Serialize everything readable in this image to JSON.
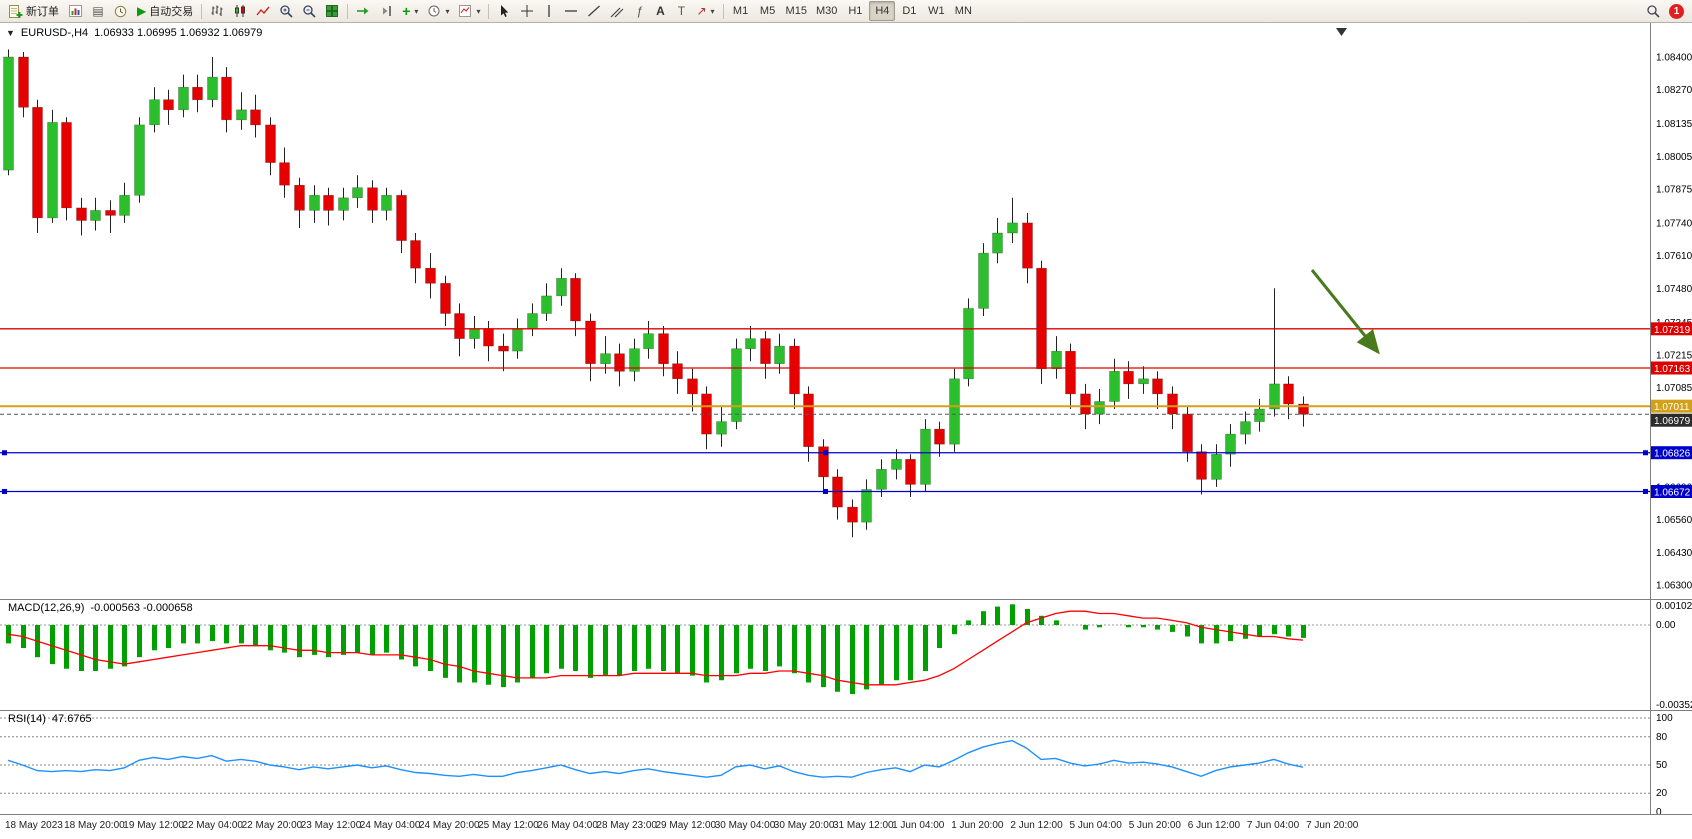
{
  "toolbar": {
    "new_order_label": "新订单",
    "auto_trading_label": "自动交易",
    "timeframe_label_group": [
      "M1",
      "M5",
      "M15",
      "M30",
      "H1",
      "H4",
      "D1",
      "W1",
      "MN"
    ],
    "active_timeframe": "H4",
    "notification_count": "1",
    "glyphs": {
      "one_click": "▼",
      "profiles": "▤",
      "auto_trading": "▶",
      "dropdown": "▾",
      "indicators_plus": "+",
      "fibonacci": "ƒ",
      "text": "A",
      "text_label": "T",
      "arrows": "↗"
    },
    "icons": [
      "new-order",
      "new-chart",
      "profiles",
      "market-watch",
      "auto-trading",
      "bar-chart",
      "candlestick-chart",
      "line-chart",
      "zoom-in",
      "zoom-out",
      "tile-windows",
      "auto-scroll",
      "chart-shift",
      "indicators",
      "periods",
      "templates",
      "cursor",
      "crosshair",
      "vertical-line",
      "horizontal-line",
      "trendline",
      "equidistant-channel",
      "fibonacci",
      "text",
      "text-label",
      "arrows",
      "search",
      "notification"
    ]
  },
  "chart": {
    "symbol": "EURUSD-,H4",
    "ohlc_line": "1.06933 1.06995 1.06932 1.06979",
    "price_axis_labels": [
      "1.08400",
      "1.08270",
      "1.08135",
      "1.08005",
      "1.07875",
      "1.07740",
      "1.07610",
      "1.07480",
      "1.07345",
      "1.07215",
      "1.07085",
      "1.06950",
      "1.06820",
      "1.06690",
      "1.06560",
      "1.06430",
      "1.06300"
    ],
    "time_axis_labels": [
      "18 May 2023",
      "18 May 20:00",
      "19 May 12:00",
      "22 May 04:00",
      "22 May 20:00",
      "23 May 12:00",
      "24 May 04:00",
      "24 May 20:00",
      "25 May 12:00",
      "26 May 04:00",
      "28 May 23:00",
      "29 May 12:00",
      "30 May 04:00",
      "30 May 20:00",
      "31 May 12:00",
      "1 Jun 04:00",
      "1 Jun 20:00",
      "2 Jun 12:00",
      "5 Jun 04:00",
      "5 Jun 20:00",
      "6 Jun 12:00",
      "7 Jun 04:00",
      "7 Jun 20:00"
    ],
    "horizontal_lines": [
      {
        "price": "1.07319",
        "value": 1.07319,
        "color": "#dd0000",
        "type": "resistance",
        "handles": false
      },
      {
        "price": "1.07163",
        "value": 1.07163,
        "color": "#dd0000",
        "type": "resistance",
        "handles": false
      },
      {
        "price": "1.07011",
        "value": 1.07011,
        "color": "#d4a017",
        "type": "pivot",
        "handles": false
      },
      {
        "price": "1.06826",
        "value": 1.06826,
        "color": "#0000cc",
        "type": "support",
        "handles": true
      },
      {
        "price": "1.06672",
        "value": 1.06672,
        "color": "#0000cc",
        "type": "support",
        "handles": true
      }
    ],
    "current_price": {
      "label": "1.06979",
      "value": 1.06979,
      "badge_color": "#2b2b2b"
    },
    "colors": {
      "bull": "#2DBE2D",
      "bear": "#E60000",
      "wick": "#222222",
      "macd_histogram": "#00A000",
      "macd_signal": "#FF0000",
      "rsi_line": "#1E90FF",
      "arrow": "#4a7a1e"
    }
  },
  "chart_data": {
    "type": "candlestick",
    "symbol": "EURUSD-",
    "timeframe": "H4",
    "price_range": [
      1.063,
      1.084
    ],
    "ohlc": [
      [
        1.0795,
        1.0843,
        1.0793,
        1.084
      ],
      [
        1.084,
        1.0842,
        1.0816,
        1.082
      ],
      [
        1.082,
        1.0823,
        1.077,
        1.0776
      ],
      [
        1.0776,
        1.0819,
        1.0774,
        1.0814
      ],
      [
        1.0814,
        1.0816,
        1.0775,
        1.078
      ],
      [
        1.078,
        1.0784,
        1.0769,
        1.0775
      ],
      [
        1.0775,
        1.0784,
        1.0771,
        1.0779
      ],
      [
        1.0779,
        1.0783,
        1.077,
        1.0777
      ],
      [
        1.0777,
        1.079,
        1.0774,
        1.0785
      ],
      [
        1.0785,
        1.0816,
        1.0782,
        1.0813
      ],
      [
        1.0813,
        1.0828,
        1.081,
        1.0823
      ],
      [
        1.0823,
        1.0827,
        1.0813,
        1.0819
      ],
      [
        1.0819,
        1.0833,
        1.0816,
        1.0828
      ],
      [
        1.0828,
        1.0833,
        1.0818,
        1.0823
      ],
      [
        1.0823,
        1.084,
        1.082,
        1.0832
      ],
      [
        1.0832,
        1.0836,
        1.081,
        1.0815
      ],
      [
        1.0815,
        1.0826,
        1.0811,
        1.0819
      ],
      [
        1.0819,
        1.0825,
        1.0808,
        1.0813
      ],
      [
        1.0813,
        1.0816,
        1.0793,
        1.0798
      ],
      [
        1.0798,
        1.0804,
        1.0784,
        1.0789
      ],
      [
        1.0789,
        1.0792,
        1.0772,
        1.0779
      ],
      [
        1.0779,
        1.0789,
        1.0774,
        1.0785
      ],
      [
        1.0785,
        1.0788,
        1.0773,
        1.0779
      ],
      [
        1.0779,
        1.0788,
        1.0775,
        1.0784
      ],
      [
        1.0784,
        1.0793,
        1.078,
        1.0788
      ],
      [
        1.0788,
        1.0791,
        1.0774,
        1.0779
      ],
      [
        1.0779,
        1.0788,
        1.0775,
        1.0785
      ],
      [
        1.0785,
        1.0787,
        1.0762,
        1.0767
      ],
      [
        1.0767,
        1.077,
        1.075,
        1.0756
      ],
      [
        1.0756,
        1.0762,
        1.0744,
        1.075
      ],
      [
        1.075,
        1.0753,
        1.0733,
        1.0738
      ],
      [
        1.0738,
        1.0742,
        1.0721,
        1.0728
      ],
      [
        1.0728,
        1.0737,
        1.0724,
        1.0732
      ],
      [
        1.0732,
        1.0735,
        1.0719,
        1.0725
      ],
      [
        1.0725,
        1.073,
        1.0715,
        1.0723
      ],
      [
        1.0723,
        1.0736,
        1.072,
        1.0732
      ],
      [
        1.0732,
        1.0742,
        1.0729,
        1.0738
      ],
      [
        1.0738,
        1.075,
        1.0735,
        1.0745
      ],
      [
        1.0745,
        1.0756,
        1.0741,
        1.0752
      ],
      [
        1.0752,
        1.0754,
        1.0729,
        1.0735
      ],
      [
        1.0735,
        1.0738,
        1.0711,
        1.0718
      ],
      [
        1.0718,
        1.0729,
        1.0714,
        1.0722
      ],
      [
        1.0722,
        1.0726,
        1.0709,
        1.0715
      ],
      [
        1.0715,
        1.0728,
        1.0711,
        1.0724
      ],
      [
        1.0724,
        1.0735,
        1.072,
        1.073
      ],
      [
        1.073,
        1.0733,
        1.0713,
        1.0718
      ],
      [
        1.0718,
        1.0723,
        1.0706,
        1.0712
      ],
      [
        1.0712,
        1.0716,
        1.0699,
        1.0706
      ],
      [
        1.0706,
        1.0709,
        1.0684,
        1.069
      ],
      [
        1.069,
        1.0701,
        1.0685,
        1.0695
      ],
      [
        1.0695,
        1.0728,
        1.0692,
        1.0724
      ],
      [
        1.0724,
        1.0733,
        1.0719,
        1.0728
      ],
      [
        1.0728,
        1.0731,
        1.0712,
        1.0718
      ],
      [
        1.0718,
        1.073,
        1.0714,
        1.0725
      ],
      [
        1.0725,
        1.0728,
        1.07,
        1.0706
      ],
      [
        1.0706,
        1.0709,
        1.0679,
        1.0685
      ],
      [
        1.0685,
        1.0688,
        1.0668,
        1.0673
      ],
      [
        1.0673,
        1.0676,
        1.0656,
        1.0661
      ],
      [
        1.0661,
        1.0664,
        1.0649,
        1.0655
      ],
      [
        1.0655,
        1.0672,
        1.0652,
        1.0668
      ],
      [
        1.0668,
        1.068,
        1.0665,
        1.0676
      ],
      [
        1.0676,
        1.0684,
        1.0672,
        1.068
      ],
      [
        1.068,
        1.0682,
        1.0665,
        1.067
      ],
      [
        1.067,
        1.0696,
        1.0667,
        1.0692
      ],
      [
        1.0692,
        1.0695,
        1.0681,
        1.0686
      ],
      [
        1.0686,
        1.0716,
        1.0683,
        1.0712
      ],
      [
        1.0712,
        1.0744,
        1.0709,
        1.074
      ],
      [
        1.074,
        1.0766,
        1.0737,
        1.0762
      ],
      [
        1.0762,
        1.0776,
        1.0758,
        1.077
      ],
      [
        1.077,
        1.0784,
        1.0766,
        1.0774
      ],
      [
        1.0774,
        1.0778,
        1.075,
        1.0756
      ],
      [
        1.0756,
        1.0759,
        1.071,
        1.0716
      ],
      [
        1.0716,
        1.0729,
        1.0712,
        1.0723
      ],
      [
        1.0723,
        1.0726,
        1.07,
        1.0706
      ],
      [
        1.0706,
        1.071,
        1.0692,
        1.0698
      ],
      [
        1.0698,
        1.0708,
        1.0694,
        1.0703
      ],
      [
        1.0703,
        1.072,
        1.07,
        1.0715
      ],
      [
        1.0715,
        1.0719,
        1.0704,
        1.071
      ],
      [
        1.071,
        1.0717,
        1.0706,
        1.0712
      ],
      [
        1.0712,
        1.0715,
        1.07,
        1.0706
      ],
      [
        1.0706,
        1.0709,
        1.0692,
        1.0698
      ],
      [
        1.0698,
        1.0701,
        1.0679,
        1.0683
      ],
      [
        1.0683,
        1.0686,
        1.0666,
        1.0672
      ],
      [
        1.0672,
        1.0686,
        1.0669,
        1.0682
      ],
      [
        1.0682,
        1.0694,
        1.0677,
        1.069
      ],
      [
        1.069,
        1.0699,
        1.0686,
        1.0695
      ],
      [
        1.0695,
        1.0704,
        1.0691,
        1.07
      ],
      [
        1.07,
        1.0748,
        1.0697,
        1.071
      ],
      [
        1.071,
        1.0713,
        1.0696,
        1.0702
      ],
      [
        1.0702,
        1.0705,
        1.0693,
        1.06979
      ]
    ],
    "indicators": {
      "macd": {
        "title": "MACD(12,26,9)",
        "values_text": "-0.000563 -0.000658",
        "axis_labels": [
          "0.001027",
          "0.00",
          "-0.00352"
        ],
        "axis_values": [
          0.001027,
          0,
          -0.00352
        ],
        "histogram": [
          -0.0008,
          -0.001,
          -0.0014,
          -0.0017,
          -0.0019,
          -0.002,
          -0.002,
          -0.0019,
          -0.0018,
          -0.0014,
          -0.0011,
          -0.001,
          -0.0008,
          -0.0008,
          -0.0007,
          -0.0008,
          -0.0008,
          -0.0009,
          -0.0011,
          -0.0012,
          -0.0014,
          -0.0013,
          -0.0014,
          -0.0013,
          -0.0012,
          -0.0013,
          -0.0012,
          -0.0015,
          -0.0018,
          -0.002,
          -0.0023,
          -0.0025,
          -0.0025,
          -0.0026,
          -0.0027,
          -0.0025,
          -0.0023,
          -0.0021,
          -0.0019,
          -0.002,
          -0.0023,
          -0.0022,
          -0.0022,
          -0.002,
          -0.0019,
          -0.002,
          -0.0021,
          -0.0022,
          -0.0025,
          -0.0024,
          -0.0021,
          -0.0019,
          -0.002,
          -0.0018,
          -0.0021,
          -0.0025,
          -0.0027,
          -0.0029,
          -0.003,
          -0.0028,
          -0.0026,
          -0.0024,
          -0.0024,
          -0.002,
          -0.001,
          -0.0004,
          0.0002,
          0.0006,
          0.0008,
          0.0009,
          0.0007,
          0.0004,
          0.0002,
          0.0,
          -0.0002,
          -0.0001,
          0.0,
          -0.0001,
          -0.0001,
          -0.0002,
          -0.0003,
          -0.0005,
          -0.0008,
          -0.0008,
          -0.0007,
          -0.0006,
          -0.0005,
          -0.0004,
          -0.0005,
          -0.000563
        ],
        "signal": [
          -0.0004,
          -0.0005,
          -0.0007,
          -0.0009,
          -0.0011,
          -0.0013,
          -0.0015,
          -0.0016,
          -0.0017,
          -0.0016,
          -0.0015,
          -0.0014,
          -0.0013,
          -0.0012,
          -0.0011,
          -0.001,
          -0.0009,
          -0.0009,
          -0.0009,
          -0.001,
          -0.0011,
          -0.0011,
          -0.0012,
          -0.0012,
          -0.0012,
          -0.0013,
          -0.0013,
          -0.0013,
          -0.0014,
          -0.0015,
          -0.0017,
          -0.0018,
          -0.002,
          -0.0021,
          -0.0022,
          -0.0023,
          -0.0023,
          -0.0023,
          -0.0022,
          -0.0022,
          -0.0022,
          -0.0022,
          -0.0022,
          -0.0021,
          -0.0021,
          -0.0021,
          -0.0021,
          -0.0021,
          -0.0022,
          -0.0022,
          -0.0022,
          -0.0021,
          -0.0021,
          -0.002,
          -0.002,
          -0.0021,
          -0.0022,
          -0.0024,
          -0.0025,
          -0.0026,
          -0.0026,
          -0.0026,
          -0.0025,
          -0.0024,
          -0.0022,
          -0.0019,
          -0.0015,
          -0.0011,
          -0.0007,
          -0.0003,
          0.0001,
          0.0003,
          0.0005,
          0.0006,
          0.0006,
          0.0005,
          0.0005,
          0.0004,
          0.0003,
          0.0003,
          0.0002,
          0.0001,
          -0.0001,
          -0.0002,
          -0.0003,
          -0.0004,
          -0.0005,
          -0.0005,
          -0.0006,
          -0.000658
        ]
      },
      "rsi": {
        "title": "RSI(14)",
        "value_text": "47.6765",
        "axis_labels": [
          "100",
          "80",
          "50",
          "20",
          "0"
        ],
        "axis_values": [
          100,
          80,
          50,
          20,
          0
        ],
        "levels": [
          100,
          80,
          50,
          20
        ],
        "values": [
          55,
          50,
          44,
          43,
          44,
          43,
          45,
          44,
          47,
          55,
          58,
          56,
          59,
          57,
          60,
          54,
          56,
          54,
          50,
          48,
          45,
          48,
          46,
          48,
          50,
          47,
          49,
          45,
          42,
          41,
          39,
          38,
          40,
          38,
          38,
          42,
          44,
          47,
          50,
          45,
          41,
          43,
          41,
          44,
          46,
          43,
          41,
          39,
          37,
          39,
          48,
          50,
          46,
          49,
          43,
          39,
          37,
          38,
          37,
          42,
          45,
          47,
          43,
          50,
          48,
          55,
          63,
          69,
          73,
          76,
          68,
          56,
          57,
          52,
          49,
          51,
          55,
          52,
          53,
          51,
          48,
          43,
          38,
          44,
          48,
          50,
          52,
          56,
          51,
          47.68
        ]
      }
    }
  }
}
